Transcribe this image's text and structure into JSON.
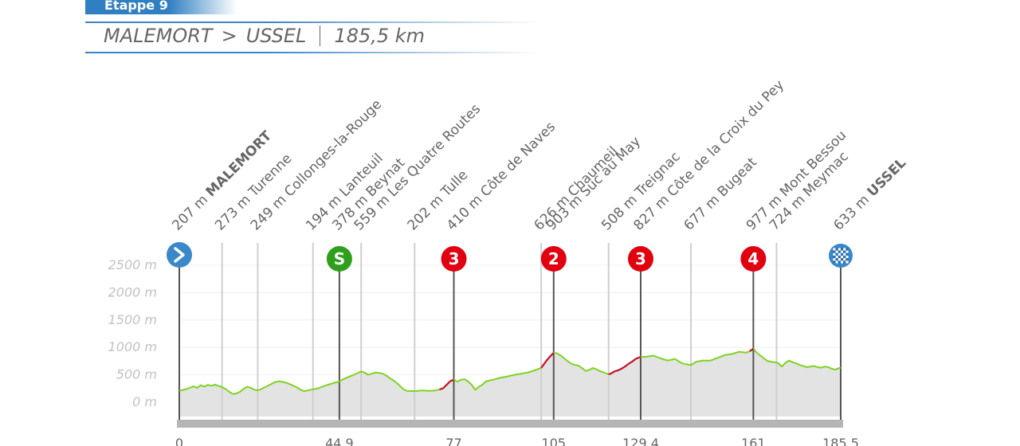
{
  "header": {
    "stage_label": "Etappe 9",
    "start": "MALEMORT",
    "separator": ">",
    "finish": "USSEL",
    "distance": "185,5 km"
  },
  "chart_data": {
    "type": "area",
    "title": "",
    "xlabel": "",
    "ylabel": "",
    "xlim": [
      0,
      185.5
    ],
    "ylim": [
      0,
      2500
    ],
    "y_ticks": [
      "0 m",
      "500 m",
      "1000 m",
      "1500 m",
      "2000 m",
      "2500 m"
    ],
    "x_ticks": [
      {
        "km": 0,
        "label": "0"
      },
      {
        "km": 44.9,
        "label": "44,9"
      },
      {
        "km": 77,
        "label": "77"
      },
      {
        "km": 105,
        "label": "105"
      },
      {
        "km": 129.4,
        "label": "129,4"
      },
      {
        "km": 161,
        "label": "161"
      },
      {
        "km": 185.5,
        "label": "185,5"
      }
    ],
    "waypoints": [
      {
        "km": 0,
        "alt": "207 m",
        "name": "MALEMORT",
        "bold": true,
        "marker": "start"
      },
      {
        "km": 12,
        "alt": "273 m",
        "name": "Turenne"
      },
      {
        "km": 22,
        "alt": "249 m",
        "name": "Collonges-la-Rouge"
      },
      {
        "km": 37.5,
        "alt": "194 m",
        "name": "Lanteuil"
      },
      {
        "km": 44.9,
        "alt": "378 m",
        "name": "Beynat",
        "marker": "S"
      },
      {
        "km": 51,
        "alt": "559 m",
        "name": "Les Quatre Routes"
      },
      {
        "km": 66,
        "alt": "202 m",
        "name": "Tulle"
      },
      {
        "km": 77,
        "alt": "410 m",
        "name": "Côte de Naves",
        "marker": "3"
      },
      {
        "km": 101.5,
        "alt": "626 m",
        "name": "Chaumeil"
      },
      {
        "km": 105,
        "alt": "903 m",
        "name": "Suc au May",
        "marker": "2"
      },
      {
        "km": 120.4,
        "alt": "508 m",
        "name": "Treignac"
      },
      {
        "km": 129.4,
        "alt": "827 m",
        "name": "Côte de la Croix du Pey",
        "marker": "3"
      },
      {
        "km": 143.5,
        "alt": "677 m",
        "name": "Bugeat"
      },
      {
        "km": 161,
        "alt": "977 m",
        "name": "Mont Bessou",
        "marker": "4"
      },
      {
        "km": 167.5,
        "alt": "724 m",
        "name": "Meymac"
      },
      {
        "km": 185.5,
        "alt": "633 m",
        "name": "USSEL",
        "bold": true,
        "marker": "finish"
      }
    ],
    "profile": [
      [
        0,
        207
      ],
      [
        2,
        240
      ],
      [
        4,
        290
      ],
      [
        5,
        260
      ],
      [
        6,
        310
      ],
      [
        7,
        285
      ],
      [
        8,
        315
      ],
      [
        9,
        300
      ],
      [
        10,
        320
      ],
      [
        11,
        300
      ],
      [
        12,
        273
      ],
      [
        13,
        240
      ],
      [
        14,
        190
      ],
      [
        15,
        150
      ],
      [
        16,
        160
      ],
      [
        17,
        190
      ],
      [
        18,
        240
      ],
      [
        19,
        280
      ],
      [
        20,
        265
      ],
      [
        21,
        230
      ],
      [
        22,
        215
      ],
      [
        23,
        240
      ],
      [
        24,
        275
      ],
      [
        25,
        305
      ],
      [
        26,
        340
      ],
      [
        27,
        370
      ],
      [
        28,
        380
      ],
      [
        29,
        370
      ],
      [
        30,
        355
      ],
      [
        31,
        330
      ],
      [
        32,
        300
      ],
      [
        33,
        270
      ],
      [
        34,
        230
      ],
      [
        35,
        200
      ],
      [
        36,
        215
      ],
      [
        37.5,
        235
      ],
      [
        39,
        255
      ],
      [
        40,
        280
      ],
      [
        42,
        325
      ],
      [
        44.9,
        378
      ],
      [
        46,
        420
      ],
      [
        48,
        475
      ],
      [
        50,
        530
      ],
      [
        51,
        559
      ],
      [
        52,
        540
      ],
      [
        53,
        500
      ],
      [
        54,
        520
      ],
      [
        55,
        540
      ],
      [
        56,
        535
      ],
      [
        57,
        520
      ],
      [
        58,
        490
      ],
      [
        59,
        440
      ],
      [
        60,
        400
      ],
      [
        61,
        350
      ],
      [
        62,
        290
      ],
      [
        63,
        230
      ],
      [
        64,
        205
      ],
      [
        66,
        202
      ],
      [
        68,
        215
      ],
      [
        70,
        208
      ],
      [
        72,
        215
      ],
      [
        73,
        232
      ],
      [
        74,
        255
      ],
      [
        75,
        320
      ],
      [
        76,
        385
      ],
      [
        77,
        410
      ],
      [
        78,
        375
      ],
      [
        79,
        410
      ],
      [
        80,
        420
      ],
      [
        81,
        380
      ],
      [
        82,
        320
      ],
      [
        83,
        225
      ],
      [
        84,
        280
      ],
      [
        85,
        320
      ],
      [
        86,
        380
      ],
      [
        88,
        410
      ],
      [
        90,
        445
      ],
      [
        92,
        470
      ],
      [
        94,
        500
      ],
      [
        96,
        520
      ],
      [
        98,
        545
      ],
      [
        100,
        590
      ],
      [
        101.5,
        626
      ],
      [
        103,
        760
      ],
      [
        104,
        835
      ],
      [
        105,
        903
      ],
      [
        106,
        890
      ],
      [
        107,
        850
      ],
      [
        108,
        800
      ],
      [
        109,
        745
      ],
      [
        110,
        700
      ],
      [
        111,
        680
      ],
      [
        112,
        665
      ],
      [
        113,
        620
      ],
      [
        114,
        570
      ],
      [
        115,
        590
      ],
      [
        116,
        625
      ],
      [
        117,
        600
      ],
      [
        118,
        565
      ],
      [
        119,
        545
      ],
      [
        120.4,
        508
      ],
      [
        121,
        520
      ],
      [
        122,
        560
      ],
      [
        123,
        580
      ],
      [
        124,
        610
      ],
      [
        125,
        650
      ],
      [
        126,
        700
      ],
      [
        127,
        740
      ],
      [
        128,
        790
      ],
      [
        129.4,
        827
      ],
      [
        131,
        830
      ],
      [
        133,
        850
      ],
      [
        135,
        800
      ],
      [
        137,
        760
      ],
      [
        139,
        790
      ],
      [
        141,
        710
      ],
      [
        143.5,
        677
      ],
      [
        145,
        740
      ],
      [
        147,
        760
      ],
      [
        149,
        760
      ],
      [
        151,
        810
      ],
      [
        153,
        860
      ],
      [
        155,
        880
      ],
      [
        157,
        920
      ],
      [
        159,
        905
      ],
      [
        160,
        930
      ],
      [
        161,
        977
      ],
      [
        162,
        900
      ],
      [
        163,
        850
      ],
      [
        164,
        800
      ],
      [
        165,
        750
      ],
      [
        166,
        740
      ],
      [
        167.5,
        724
      ],
      [
        168,
        710
      ],
      [
        169,
        650
      ],
      [
        170,
        720
      ],
      [
        171,
        760
      ],
      [
        172,
        730
      ],
      [
        173,
        710
      ],
      [
        174,
        680
      ],
      [
        175,
        660
      ],
      [
        176,
        640
      ],
      [
        177,
        650
      ],
      [
        178,
        660
      ],
      [
        179,
        640
      ],
      [
        180,
        630
      ],
      [
        181,
        650
      ],
      [
        182,
        640
      ],
      [
        183,
        610
      ],
      [
        184,
        595
      ],
      [
        185.5,
        633
      ]
    ],
    "climbs": [
      [
        73,
        77
      ],
      [
        101.5,
        105
      ],
      [
        119.5,
        129.4
      ],
      [
        160,
        161.2
      ]
    ],
    "colors": {
      "profile_fill": "#e3e3e3",
      "profile_line": "#7ed321",
      "climb_line": "#c8102e",
      "base_bar": "#b5b5b5",
      "gridline": "#f0f0f0",
      "marker_line": "#cfcfcf",
      "key_marker_line": "#555555",
      "label_text": "#666666",
      "axis_text": "#c2c2c2",
      "start_finish_icon": "#3a87c9",
      "sprint_icon": "#2e9e1c",
      "climb_icon": "#e1000f",
      "header_blue": "#2f7fc2"
    },
    "legend": "none",
    "grid": true
  }
}
